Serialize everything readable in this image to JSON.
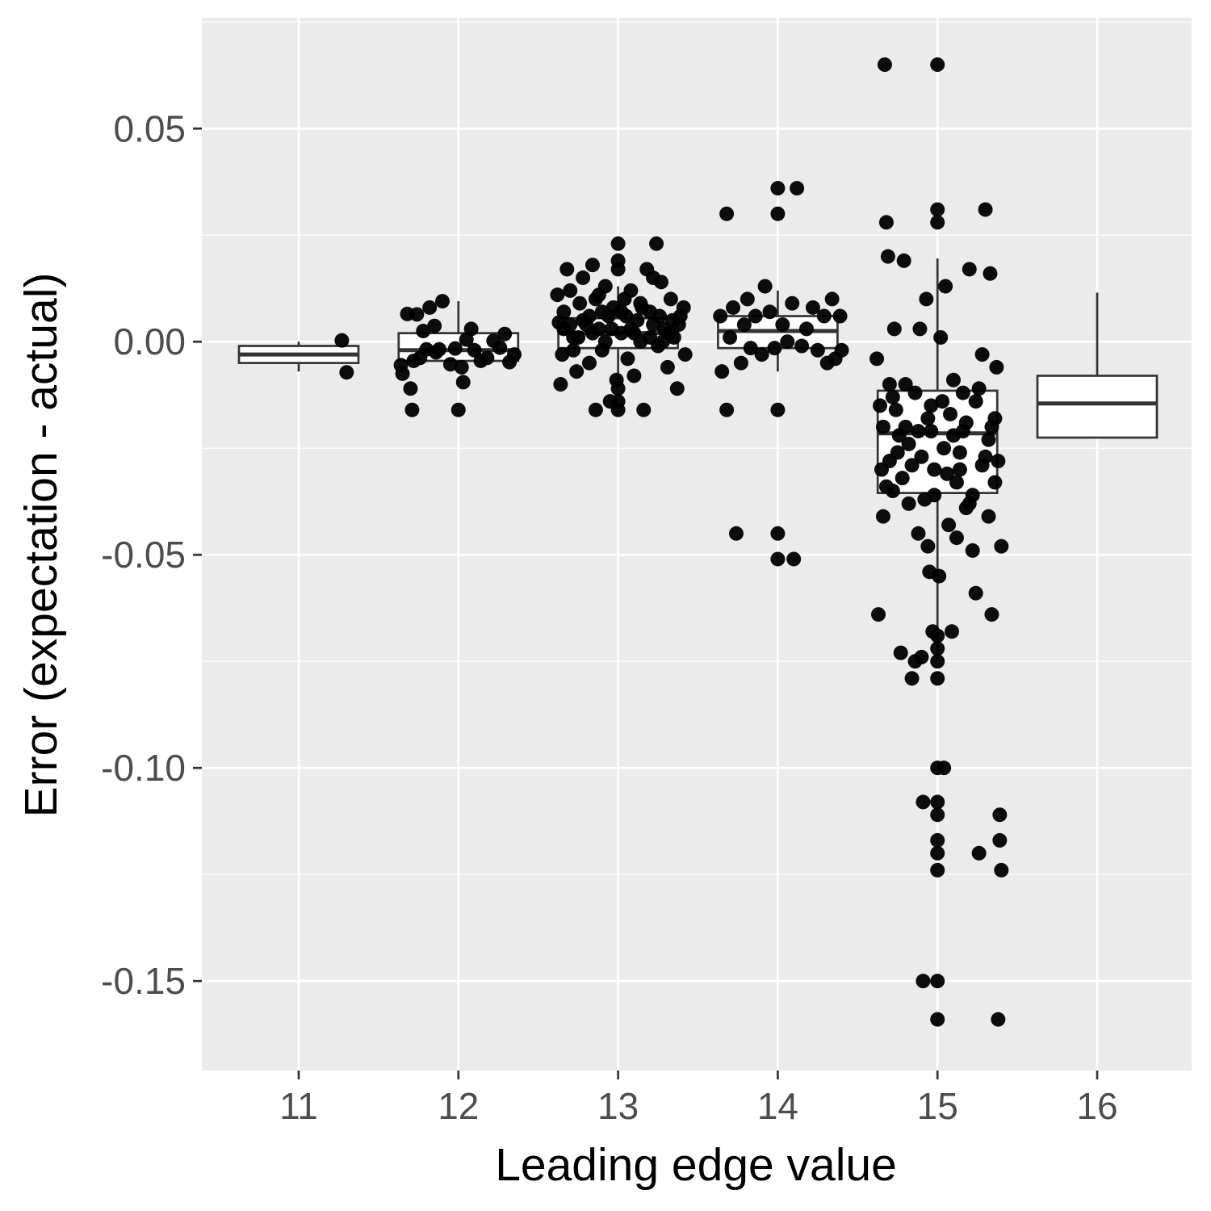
{
  "chart_data": {
    "type": "box",
    "title": "",
    "xlabel": "Leading edge value",
    "ylabel": "Error (expectation - actual)",
    "ylim": [
      -0.171,
      0.076
    ],
    "yticks": [
      0.05,
      0.0,
      -0.05,
      -0.1,
      -0.15
    ],
    "ytick_labels": [
      "0.05",
      "0.00",
      "-0.05",
      "-0.10",
      "-0.15"
    ],
    "grid": true,
    "colors": {
      "panel": "#ebebeb",
      "grid": "#ffffff",
      "points": "#000000",
      "box_fill": "#ffffff",
      "box_line": "#333333"
    },
    "categories": [
      "11",
      "12",
      "13",
      "14",
      "15",
      "16"
    ],
    "boxes": [
      {
        "x": "11",
        "min": -0.007,
        "q1": -0.005,
        "median": -0.003,
        "q3": -0.001,
        "max": 0.0
      },
      {
        "x": "12",
        "min": -0.005,
        "q1": -0.0045,
        "median": -0.002,
        "q3": 0.002,
        "max": 0.0095
      },
      {
        "x": "13",
        "min": -0.009,
        "q1": -0.0015,
        "median": 0.002,
        "q3": 0.0055,
        "max": 0.013
      },
      {
        "x": "14",
        "min": -0.007,
        "q1": -0.0015,
        "median": 0.0025,
        "q3": 0.006,
        "max": 0.012
      },
      {
        "x": "15",
        "min": -0.0735,
        "q1": -0.0355,
        "median": -0.0215,
        "q3": -0.0115,
        "max": 0.0195
      },
      {
        "x": "16",
        "min": -0.0225,
        "q1": -0.0225,
        "median": -0.0145,
        "q3": -0.008,
        "max": 0.0115
      }
    ],
    "points": [
      [
        11.27,
        0.0003
      ],
      [
        11.3,
        -0.0072
      ],
      [
        11.64,
        -0.0055
      ],
      [
        11.65,
        -0.0075
      ],
      [
        11.68,
        0.0065
      ],
      [
        11.72,
        -0.0045
      ],
      [
        11.7,
        -0.011
      ],
      [
        11.71,
        -0.016
      ],
      [
        11.74,
        0.0064
      ],
      [
        11.76,
        -0.0038
      ],
      [
        11.78,
        0.0025
      ],
      [
        11.8,
        -0.0018
      ],
      [
        11.82,
        0.008
      ],
      [
        11.86,
        -0.0025
      ],
      [
        11.85,
        0.0037
      ],
      [
        11.88,
        -0.0018
      ],
      [
        11.9,
        0.0095
      ],
      [
        11.95,
        -0.0053
      ],
      [
        11.98,
        -0.0016
      ],
      [
        12.0,
        -0.016
      ],
      [
        12.02,
        -0.006
      ],
      [
        12.03,
        -0.0095
      ],
      [
        12.05,
        0.0005
      ],
      [
        12.08,
        0.003
      ],
      [
        12.1,
        -0.002
      ],
      [
        12.14,
        -0.0045
      ],
      [
        12.18,
        -0.0038
      ],
      [
        12.22,
        0.0002
      ],
      [
        12.26,
        -0.0014
      ],
      [
        12.29,
        0.0018
      ],
      [
        12.32,
        -0.0048
      ],
      [
        12.35,
        -0.003
      ],
      [
        12.62,
        0.011
      ],
      [
        12.63,
        0.0045
      ],
      [
        12.65,
        -0.003
      ],
      [
        12.64,
        -0.01
      ],
      [
        12.66,
        0.003
      ],
      [
        12.68,
        0.017
      ],
      [
        12.7,
        0.012
      ],
      [
        12.72,
        0.001
      ],
      [
        12.74,
        -0.007
      ],
      [
        12.76,
        0.009
      ],
      [
        12.78,
        0.015
      ],
      [
        12.8,
        0.004
      ],
      [
        12.82,
        -0.005
      ],
      [
        12.84,
        0.018
      ],
      [
        12.86,
        0.01
      ],
      [
        12.86,
        -0.016
      ],
      [
        12.88,
        0.003
      ],
      [
        12.9,
        -0.002
      ],
      [
        12.92,
        0.013
      ],
      [
        12.94,
        0.006
      ],
      [
        12.95,
        -0.014
      ],
      [
        12.97,
        0.008
      ],
      [
        12.99,
        -0.009
      ],
      [
        13.0,
        0.023
      ],
      [
        13.0,
        0.019
      ],
      [
        13.0,
        0.017
      ],
      [
        13.0,
        -0.011
      ],
      [
        13.0,
        -0.014
      ],
      [
        13.0,
        -0.016
      ],
      [
        13.02,
        0.002
      ],
      [
        13.04,
        0.01
      ],
      [
        13.06,
        -0.004
      ],
      [
        13.08,
        0.012
      ],
      [
        13.1,
        -0.008
      ],
      [
        13.12,
        0.005
      ],
      [
        13.14,
        0.0
      ],
      [
        13.16,
        -0.016
      ],
      [
        13.18,
        0.017
      ],
      [
        13.2,
        0.007
      ],
      [
        13.22,
        0.015
      ],
      [
        13.24,
        0.023
      ],
      [
        13.25,
        -0.001
      ],
      [
        13.27,
        0.014
      ],
      [
        13.29,
        0.003
      ],
      [
        13.31,
        -0.006
      ],
      [
        13.33,
        0.01
      ],
      [
        13.35,
        0.001
      ],
      [
        13.37,
        -0.011
      ],
      [
        13.39,
        0.006
      ],
      [
        13.41,
        0.008
      ],
      [
        13.42,
        -0.003
      ],
      [
        12.7,
        0.004
      ],
      [
        12.75,
        0.001
      ],
      [
        12.82,
        0.006
      ],
      [
        12.88,
        0.011
      ],
      [
        12.92,
        0.0
      ],
      [
        13.05,
        0.006
      ],
      [
        13.1,
        0.002
      ],
      [
        13.15,
        0.008
      ],
      [
        13.22,
        0.004
      ],
      [
        13.28,
        0.0
      ],
      [
        13.34,
        0.005
      ],
      [
        12.66,
        0.007
      ],
      [
        12.72,
        -0.002
      ],
      [
        12.78,
        0.005
      ],
      [
        12.84,
        0.002
      ],
      [
        12.9,
        0.007
      ],
      [
        12.96,
        0.003
      ],
      [
        13.02,
        0.007
      ],
      [
        13.08,
        0.003
      ],
      [
        13.14,
        0.009
      ],
      [
        13.2,
        0.001
      ],
      [
        13.26,
        0.006
      ],
      [
        13.32,
        0.002
      ],
      [
        13.38,
        0.004
      ],
      [
        13.64,
        0.006
      ],
      [
        13.65,
        -0.007
      ],
      [
        13.68,
        0.03
      ],
      [
        13.68,
        -0.016
      ],
      [
        13.7,
        0.001
      ],
      [
        13.72,
        0.008
      ],
      [
        13.74,
        -0.045
      ],
      [
        13.77,
        -0.005
      ],
      [
        13.79,
        0.004
      ],
      [
        13.81,
        0.01
      ],
      [
        13.83,
        -0.0015
      ],
      [
        13.86,
        0.006
      ],
      [
        13.9,
        -0.003
      ],
      [
        13.92,
        0.013
      ],
      [
        13.95,
        0.007
      ],
      [
        13.98,
        -0.0015
      ],
      [
        14.0,
        0.036
      ],
      [
        14.0,
        0.03
      ],
      [
        14.0,
        -0.016
      ],
      [
        14.0,
        -0.045
      ],
      [
        14.0,
        -0.051
      ],
      [
        14.03,
        0.004
      ],
      [
        14.06,
        0.0
      ],
      [
        14.09,
        0.009
      ],
      [
        14.1,
        -0.051
      ],
      [
        14.12,
        0.036
      ],
      [
        14.15,
        -0.001
      ],
      [
        14.18,
        0.003
      ],
      [
        14.22,
        0.008
      ],
      [
        14.25,
        -0.002
      ],
      [
        14.29,
        0.006
      ],
      [
        14.31,
        -0.005
      ],
      [
        14.34,
        0.01
      ],
      [
        14.36,
        -0.004
      ],
      [
        14.39,
        0.006
      ],
      [
        14.4,
        -0.002
      ],
      [
        14.62,
        -0.004
      ],
      [
        14.63,
        -0.064
      ],
      [
        14.64,
        -0.015
      ],
      [
        14.65,
        -0.03
      ],
      [
        14.66,
        -0.041
      ],
      [
        14.67,
        0.065
      ],
      [
        14.68,
        0.028
      ],
      [
        14.69,
        0.02
      ],
      [
        14.7,
        -0.01
      ],
      [
        14.72,
        -0.035
      ],
      [
        14.73,
        0.003
      ],
      [
        14.75,
        -0.026
      ],
      [
        14.77,
        -0.073
      ],
      [
        14.79,
        0.019
      ],
      [
        14.8,
        -0.02
      ],
      [
        14.82,
        -0.038
      ],
      [
        14.84,
        -0.079
      ],
      [
        14.86,
        -0.075
      ],
      [
        14.88,
        -0.045
      ],
      [
        14.89,
        0.003
      ],
      [
        14.9,
        -0.074
      ],
      [
        14.91,
        -0.108
      ],
      [
        14.91,
        -0.15
      ],
      [
        14.93,
        0.01
      ],
      [
        14.94,
        -0.048
      ],
      [
        14.95,
        -0.054
      ],
      [
        14.96,
        -0.021
      ],
      [
        14.97,
        -0.068
      ],
      [
        14.98,
        -0.03
      ],
      [
        15.0,
        0.065
      ],
      [
        15.0,
        0.031
      ],
      [
        15.0,
        0.028
      ],
      [
        15.0,
        -0.069
      ],
      [
        15.0,
        -0.072
      ],
      [
        15.0,
        -0.075
      ],
      [
        15.0,
        -0.079
      ],
      [
        15.0,
        -0.1
      ],
      [
        15.0,
        -0.108
      ],
      [
        15.0,
        -0.111
      ],
      [
        15.0,
        -0.117
      ],
      [
        15.0,
        -0.12
      ],
      [
        15.0,
        -0.124
      ],
      [
        15.0,
        -0.15
      ],
      [
        15.0,
        -0.159
      ],
      [
        15.01,
        -0.055
      ],
      [
        15.02,
        0.001
      ],
      [
        15.03,
        -0.014
      ],
      [
        15.04,
        -0.1
      ],
      [
        15.05,
        0.013
      ],
      [
        15.07,
        -0.043
      ],
      [
        15.09,
        -0.068
      ],
      [
        15.1,
        -0.022
      ],
      [
        15.12,
        -0.046
      ],
      [
        15.14,
        -0.03
      ],
      [
        15.16,
        -0.012
      ],
      [
        15.18,
        -0.039
      ],
      [
        15.2,
        0.017
      ],
      [
        15.22,
        -0.049
      ],
      [
        15.24,
        -0.059
      ],
      [
        15.26,
        -0.12
      ],
      [
        15.28,
        -0.003
      ],
      [
        15.3,
        0.031
      ],
      [
        15.32,
        -0.041
      ],
      [
        15.33,
        0.016
      ],
      [
        15.34,
        -0.064
      ],
      [
        15.36,
        -0.018
      ],
      [
        15.37,
        -0.006
      ],
      [
        15.38,
        -0.159
      ],
      [
        15.39,
        -0.111
      ],
      [
        15.39,
        -0.117
      ],
      [
        15.4,
        -0.124
      ],
      [
        15.4,
        -0.048
      ],
      [
        14.66,
        -0.02
      ],
      [
        14.7,
        -0.028
      ],
      [
        14.74,
        -0.016
      ],
      [
        14.78,
        -0.032
      ],
      [
        14.82,
        -0.024
      ],
      [
        14.86,
        -0.012
      ],
      [
        14.9,
        -0.027
      ],
      [
        14.94,
        -0.018
      ],
      [
        14.98,
        -0.036
      ],
      [
        15.04,
        -0.025
      ],
      [
        15.08,
        -0.017
      ],
      [
        15.12,
        -0.033
      ],
      [
        15.16,
        -0.021
      ],
      [
        15.2,
        -0.038
      ],
      [
        15.24,
        -0.014
      ],
      [
        15.28,
        -0.029
      ],
      [
        15.32,
        -0.023
      ],
      [
        15.36,
        -0.033
      ],
      [
        14.68,
        -0.034
      ],
      [
        14.72,
        -0.013
      ],
      [
        14.76,
        -0.022
      ],
      [
        14.8,
        -0.01
      ],
      [
        14.84,
        -0.029
      ],
      [
        14.88,
        -0.021
      ],
      [
        14.92,
        -0.037
      ],
      [
        14.96,
        -0.015
      ],
      [
        15.06,
        -0.031
      ],
      [
        15.1,
        -0.009
      ],
      [
        15.14,
        -0.026
      ],
      [
        15.18,
        -0.019
      ],
      [
        15.22,
        -0.036
      ],
      [
        15.26,
        -0.011
      ],
      [
        15.3,
        -0.027
      ],
      [
        15.34,
        -0.02
      ],
      [
        15.38,
        -0.028
      ]
    ]
  }
}
